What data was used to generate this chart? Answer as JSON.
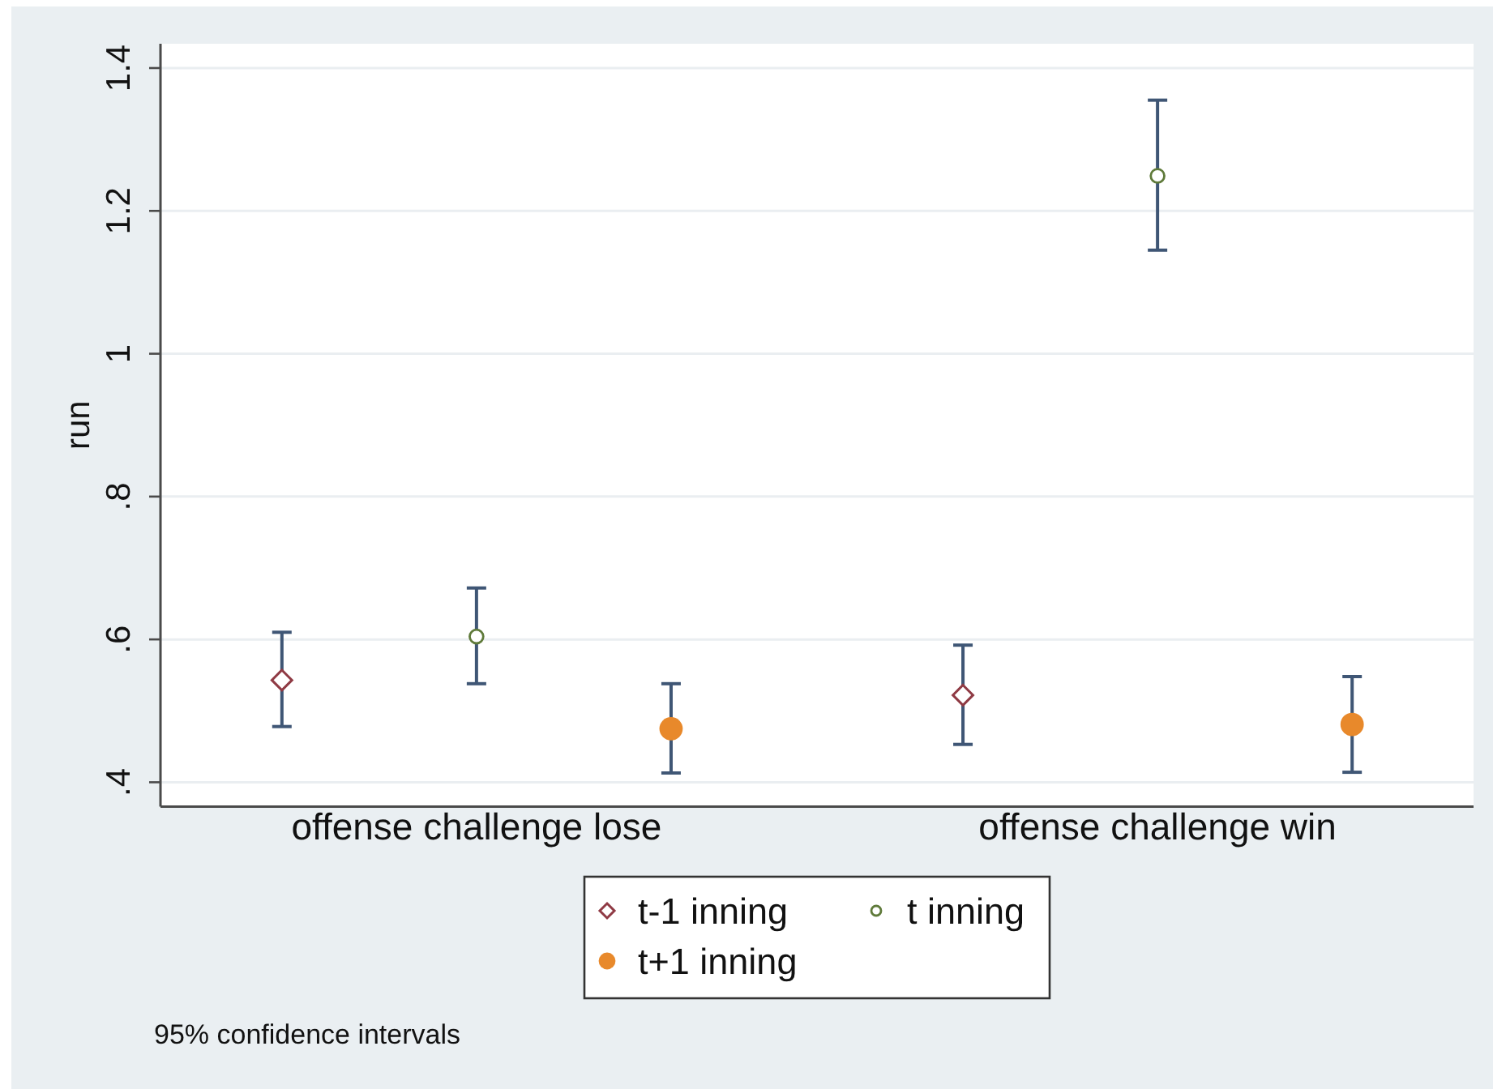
{
  "chart_data": {
    "type": "scatter",
    "ylabel": "run",
    "annotations": [
      "95% confidence intervals"
    ],
    "categories": [
      "offense challenge lose",
      "offense challenge win"
    ],
    "ylim": [
      0.366,
      1.434
    ],
    "yticks": [
      {
        "value": 0.4,
        "label": ".4"
      },
      {
        "value": 0.6,
        "label": ".6"
      },
      {
        "value": 0.8,
        "label": ".8"
      },
      1,
      1.2,
      1.4
    ],
    "grid": "y",
    "legend": "bottom",
    "series": [
      {
        "name": "t-1 inning",
        "color": "#8f3a44",
        "marker": "diamond",
        "values": [
          0.543,
          0.522
        ],
        "errors": [
          [
            0.478,
            0.61
          ],
          [
            0.453,
            0.592
          ]
        ]
      },
      {
        "name": "t inning",
        "color": "#5f7a3a",
        "marker": "circle",
        "values": [
          0.604,
          1.249
        ],
        "errors": [
          [
            0.538,
            0.672
          ],
          [
            1.145,
            1.355
          ]
        ]
      },
      {
        "name": "t+1 inning",
        "color": "#e8892b",
        "marker": "circle",
        "values": [
          0.475,
          0.481
        ],
        "errors": [
          [
            0.413,
            0.538
          ],
          [
            0.414,
            0.548
          ]
        ]
      }
    ]
  }
}
